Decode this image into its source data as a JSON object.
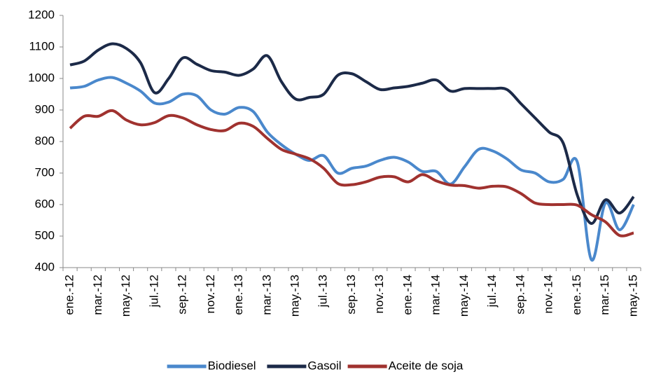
{
  "chart_data": {
    "type": "line",
    "categories": [
      "ene.-12",
      null,
      "mar.-12",
      null,
      "may.-12",
      null,
      "jul.-12",
      null,
      "sep.-12",
      null,
      "nov.-12",
      null,
      "ene.-13",
      null,
      "mar.-13",
      null,
      "may.-13",
      null,
      "jul.-13",
      null,
      "sep.-13",
      null,
      "nov.-13",
      null,
      "ene.-14",
      null,
      "mar.-14",
      null,
      "may.-14",
      null,
      "jul.-14",
      null,
      "sep.-14",
      null,
      "nov.-14",
      null,
      "ene.-15",
      null,
      "mar.-15",
      null,
      "may.-15"
    ],
    "series": [
      {
        "name": "Biodiesel",
        "color": "#4a88cc",
        "values": [
          970,
          975,
          995,
          1003,
          985,
          960,
          922,
          925,
          950,
          945,
          900,
          887,
          908,
          895,
          830,
          790,
          760,
          740,
          755,
          700,
          715,
          722,
          740,
          750,
          735,
          705,
          705,
          665,
          720,
          775,
          770,
          745,
          710,
          700,
          672,
          680,
          735,
          425,
          605,
          520,
          600
        ]
      },
      {
        "name": "Gasoil",
        "color": "#1c2a48",
        "values": [
          1043,
          1055,
          1090,
          1110,
          1095,
          1050,
          955,
          1000,
          1065,
          1045,
          1025,
          1020,
          1010,
          1030,
          1072,
          990,
          935,
          940,
          950,
          1010,
          1015,
          990,
          965,
          970,
          975,
          985,
          995,
          960,
          968,
          968,
          968,
          965,
          920,
          875,
          830,
          795,
          630,
          540,
          615,
          573,
          625
        ]
      },
      {
        "name": "Aceite de soja",
        "color": "#a0322f",
        "values": [
          842,
          880,
          880,
          898,
          868,
          853,
          860,
          882,
          875,
          853,
          838,
          835,
          858,
          848,
          810,
          775,
          760,
          745,
          715,
          667,
          663,
          672,
          687,
          688,
          672,
          695,
          675,
          662,
          660,
          652,
          658,
          656,
          635,
          605,
          600,
          600,
          598,
          568,
          545,
          502,
          510
        ]
      }
    ],
    "ylim": [
      400,
      1200
    ],
    "yticks": [
      400,
      500,
      600,
      700,
      800,
      900,
      1000,
      1100,
      1200
    ],
    "grid": false,
    "legend": "bottom"
  }
}
